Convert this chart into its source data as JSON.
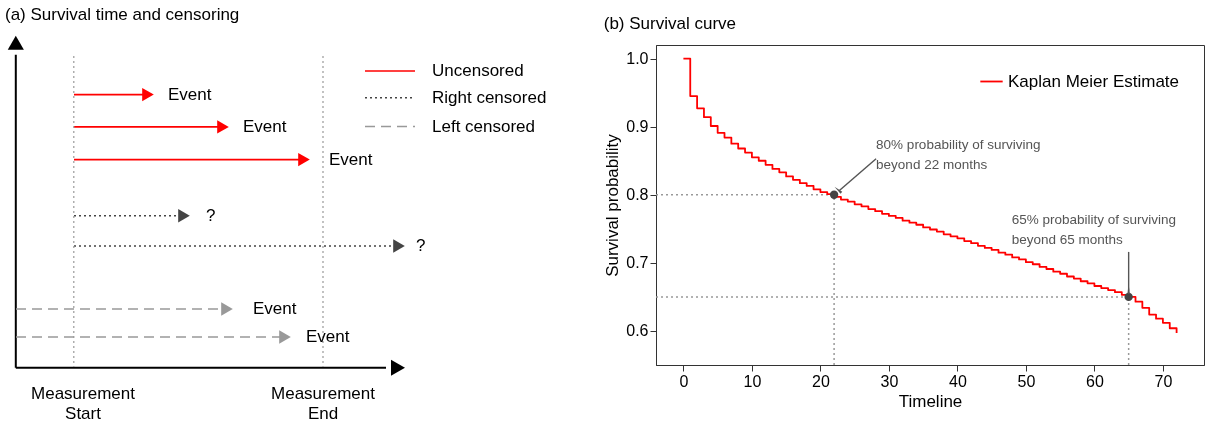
{
  "chart_data": [
    {
      "type": "other",
      "title": "(a) Survival time and censoring",
      "annotations": [
        "Event",
        "Event",
        "Event",
        "?",
        "?",
        "Event",
        "Event",
        "Uncensored",
        "Right censored",
        "Left censored",
        "Measurement\nStart",
        "Measurement\nEnd"
      ]
    },
    {
      "type": "step",
      "title": "(b) Survival curve",
      "xlabel": "Timeline",
      "ylabel": "Survival probability",
      "xlim": [
        -4,
        76
      ],
      "ylim": [
        0.55,
        1.02
      ],
      "xticks": [
        0,
        10,
        20,
        30,
        40,
        50,
        60,
        70
      ],
      "yticks": [
        0.6,
        0.7,
        0.8,
        0.9,
        {
          "value": 1.0,
          "label": "1.0"
        }
      ],
      "grid": false,
      "legend": "top right",
      "line_style": "solid",
      "series": [
        {
          "name": "Kaplan Meier Estimate",
          "color": "#ff0000",
          "x": [
            0,
            1,
            2,
            3,
            4,
            5,
            6,
            7,
            8,
            9,
            10,
            11,
            12,
            13,
            14,
            15,
            16,
            17,
            18,
            19,
            20,
            21,
            22,
            23,
            24,
            25,
            26,
            27,
            28,
            29,
            30,
            31,
            32,
            33,
            34,
            35,
            36,
            37,
            38,
            39,
            40,
            41,
            42,
            43,
            44,
            45,
            46,
            47,
            48,
            49,
            50,
            51,
            52,
            53,
            54,
            55,
            56,
            57,
            58,
            59,
            60,
            61,
            62,
            63,
            64,
            65,
            66,
            67,
            68,
            69,
            70,
            71,
            72
          ],
          "values": [
            1.0,
            0.945,
            0.927,
            0.914,
            0.901,
            0.891,
            0.884,
            0.875,
            0.868,
            0.862,
            0.855,
            0.85,
            0.844,
            0.838,
            0.833,
            0.827,
            0.822,
            0.817,
            0.813,
            0.808,
            0.804,
            0.801,
            0.797,
            0.793,
            0.79,
            0.786,
            0.783,
            0.779,
            0.776,
            0.772,
            0.769,
            0.766,
            0.762,
            0.759,
            0.756,
            0.752,
            0.749,
            0.746,
            0.742,
            0.739,
            0.736,
            0.732,
            0.729,
            0.725,
            0.722,
            0.719,
            0.715,
            0.712,
            0.708,
            0.705,
            0.701,
            0.698,
            0.694,
            0.691,
            0.687,
            0.684,
            0.68,
            0.677,
            0.673,
            0.67,
            0.666,
            0.663,
            0.66,
            0.657,
            0.653,
            0.65,
            0.643,
            0.634,
            0.624,
            0.618,
            0.612,
            0.604,
            0.597
          ]
        },
        {
          "type": "scatter",
          "marker": "circle",
          "color": "#444444",
          "x": [
            22,
            65
          ],
          "values": [
            0.8,
            0.65
          ]
        }
      ],
      "ref_lines": [
        {
          "axis": "y",
          "value": 0.8,
          "color": "#999999",
          "line_style": "dotted"
        },
        {
          "axis": "x",
          "value": 22,
          "color": "#999999",
          "line_style": "dotted"
        },
        {
          "axis": "y",
          "value": 0.65,
          "color": "#999999",
          "line_style": "dotted"
        },
        {
          "axis": "x",
          "value": 65,
          "color": "#999999",
          "line_style": "dotted"
        }
      ],
      "annotations": [
        {
          "text": "80% probability of surviving\nbeyond 22 months",
          "x": 22,
          "y": 0.8
        },
        {
          "text": "65% probability of surviving\nbeyond 65 months",
          "x": 65,
          "y": 0.65
        }
      ]
    }
  ]
}
